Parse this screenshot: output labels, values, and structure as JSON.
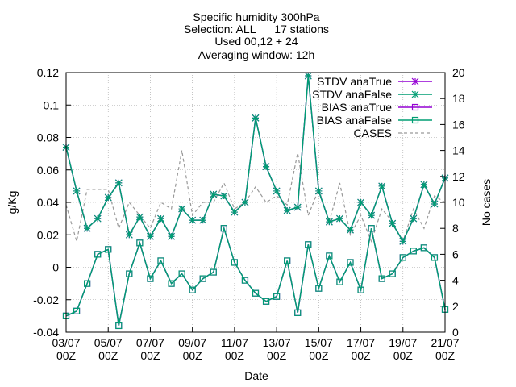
{
  "chart_data": {
    "type": "line",
    "title_lines": [
      "Specific humidity 300hPa",
      "Selection: ALL      17 stations",
      "Used 00,12 + 24",
      "Averaging window: 12h"
    ],
    "xlabel": "Date",
    "ylabel": "g/Kg",
    "y2label": "No cases",
    "ylim": [
      -0.04,
      0.12
    ],
    "y2lim": [
      0,
      20
    ],
    "yticks": [
      "-0.04",
      "-0.02",
      "0",
      "0.02",
      "0.04",
      "0.06",
      "0.08",
      "0.1",
      "0.12"
    ],
    "y2ticks": [
      "0",
      "2",
      "4",
      "6",
      "8",
      "10",
      "12",
      "14",
      "16",
      "18",
      "20"
    ],
    "xticks": [
      {
        "top": "03/07",
        "bottom": "00Z"
      },
      {
        "top": "05/07",
        "bottom": "00Z"
      },
      {
        "top": "07/07",
        "bottom": "00Z"
      },
      {
        "top": "09/07",
        "bottom": "00Z"
      },
      {
        "top": "11/07",
        "bottom": "00Z"
      },
      {
        "top": "13/07",
        "bottom": "00Z"
      },
      {
        "top": "15/07",
        "bottom": "00Z"
      },
      {
        "top": "17/07",
        "bottom": "00Z"
      },
      {
        "top": "19/07",
        "bottom": "00Z"
      },
      {
        "top": "21/07",
        "bottom": "00Z"
      }
    ],
    "x_hours": [
      0,
      12,
      24,
      36,
      48,
      60,
      72,
      84,
      96,
      108,
      120,
      132,
      144,
      156,
      168,
      180,
      192,
      204,
      216,
      228,
      240,
      252,
      264,
      276,
      288,
      300,
      312,
      324,
      336,
      348,
      360,
      372,
      384,
      396,
      408,
      420,
      432
    ],
    "x_range_hours": [
      0,
      432
    ],
    "legend_position": "top-right",
    "series": [
      {
        "name": "STDV anaTrue",
        "color": "#9400d3",
        "marker": "star",
        "axis": "y",
        "values": [
          0.074,
          0.047,
          0.024,
          0.03,
          0.043,
          0.052,
          0.02,
          0.031,
          0.019,
          0.03,
          0.019,
          0.036,
          0.029,
          0.029,
          0.045,
          0.044,
          0.034,
          0.04,
          0.092,
          0.062,
          0.047,
          0.035,
          0.037,
          0.118,
          0.047,
          0.028,
          0.03,
          0.023,
          0.04,
          0.032,
          0.05,
          0.027,
          0.016,
          0.03,
          0.051,
          0.039,
          0.055
        ]
      },
      {
        "name": "STDV anaFalse",
        "color": "#009e73",
        "marker": "star",
        "axis": "y",
        "values": [
          0.074,
          0.047,
          0.024,
          0.03,
          0.043,
          0.052,
          0.02,
          0.031,
          0.019,
          0.03,
          0.019,
          0.036,
          0.029,
          0.029,
          0.045,
          0.044,
          0.034,
          0.04,
          0.092,
          0.062,
          0.047,
          0.035,
          0.037,
          0.118,
          0.047,
          0.028,
          0.03,
          0.023,
          0.04,
          0.032,
          0.05,
          0.027,
          0.016,
          0.03,
          0.051,
          0.039,
          0.055
        ]
      },
      {
        "name": "BIAS anaTrue",
        "color": "#9400d3",
        "marker": "square",
        "axis": "y",
        "values": [
          -0.03,
          -0.027,
          -0.01,
          0.008,
          0.011,
          -0.036,
          -0.004,
          0.015,
          -0.007,
          0.004,
          -0.01,
          -0.004,
          -0.014,
          -0.007,
          -0.003,
          0.024,
          0.003,
          -0.008,
          -0.016,
          -0.021,
          -0.018,
          0.004,
          -0.028,
          0.014,
          -0.013,
          0.007,
          -0.009,
          0.003,
          -0.014,
          0.024,
          -0.007,
          -0.004,
          0.006,
          0.01,
          0.012,
          0.006,
          -0.026
        ]
      },
      {
        "name": "BIAS anaFalse",
        "color": "#009e73",
        "marker": "square",
        "axis": "y",
        "values": [
          -0.03,
          -0.027,
          -0.01,
          0.008,
          0.011,
          -0.036,
          -0.004,
          0.015,
          -0.007,
          0.004,
          -0.01,
          -0.004,
          -0.014,
          -0.007,
          -0.003,
          0.024,
          0.003,
          -0.008,
          -0.016,
          -0.021,
          -0.018,
          0.004,
          -0.028,
          0.014,
          -0.013,
          0.007,
          -0.009,
          0.003,
          -0.014,
          0.024,
          -0.007,
          -0.004,
          0.006,
          0.01,
          0.012,
          0.006,
          -0.026
        ]
      },
      {
        "name": "CASES",
        "color": "#999999",
        "marker": "none",
        "dash": true,
        "axis": "y2",
        "values": [
          9.8,
          7.0,
          11.0,
          11.0,
          11.0,
          8.0,
          10.0,
          9.0,
          8.0,
          10.0,
          9.5,
          14.0,
          9.0,
          10.0,
          10.0,
          11.5,
          9.5,
          10.0,
          11.2,
          10.0,
          10.5,
          9.8,
          13.8,
          9.0,
          11.0,
          8.5,
          11.5,
          7.5,
          9.0,
          7.0,
          9.5,
          8.5,
          7.0,
          9.5,
          8.0,
          10.5,
          10.0
        ]
      }
    ]
  }
}
